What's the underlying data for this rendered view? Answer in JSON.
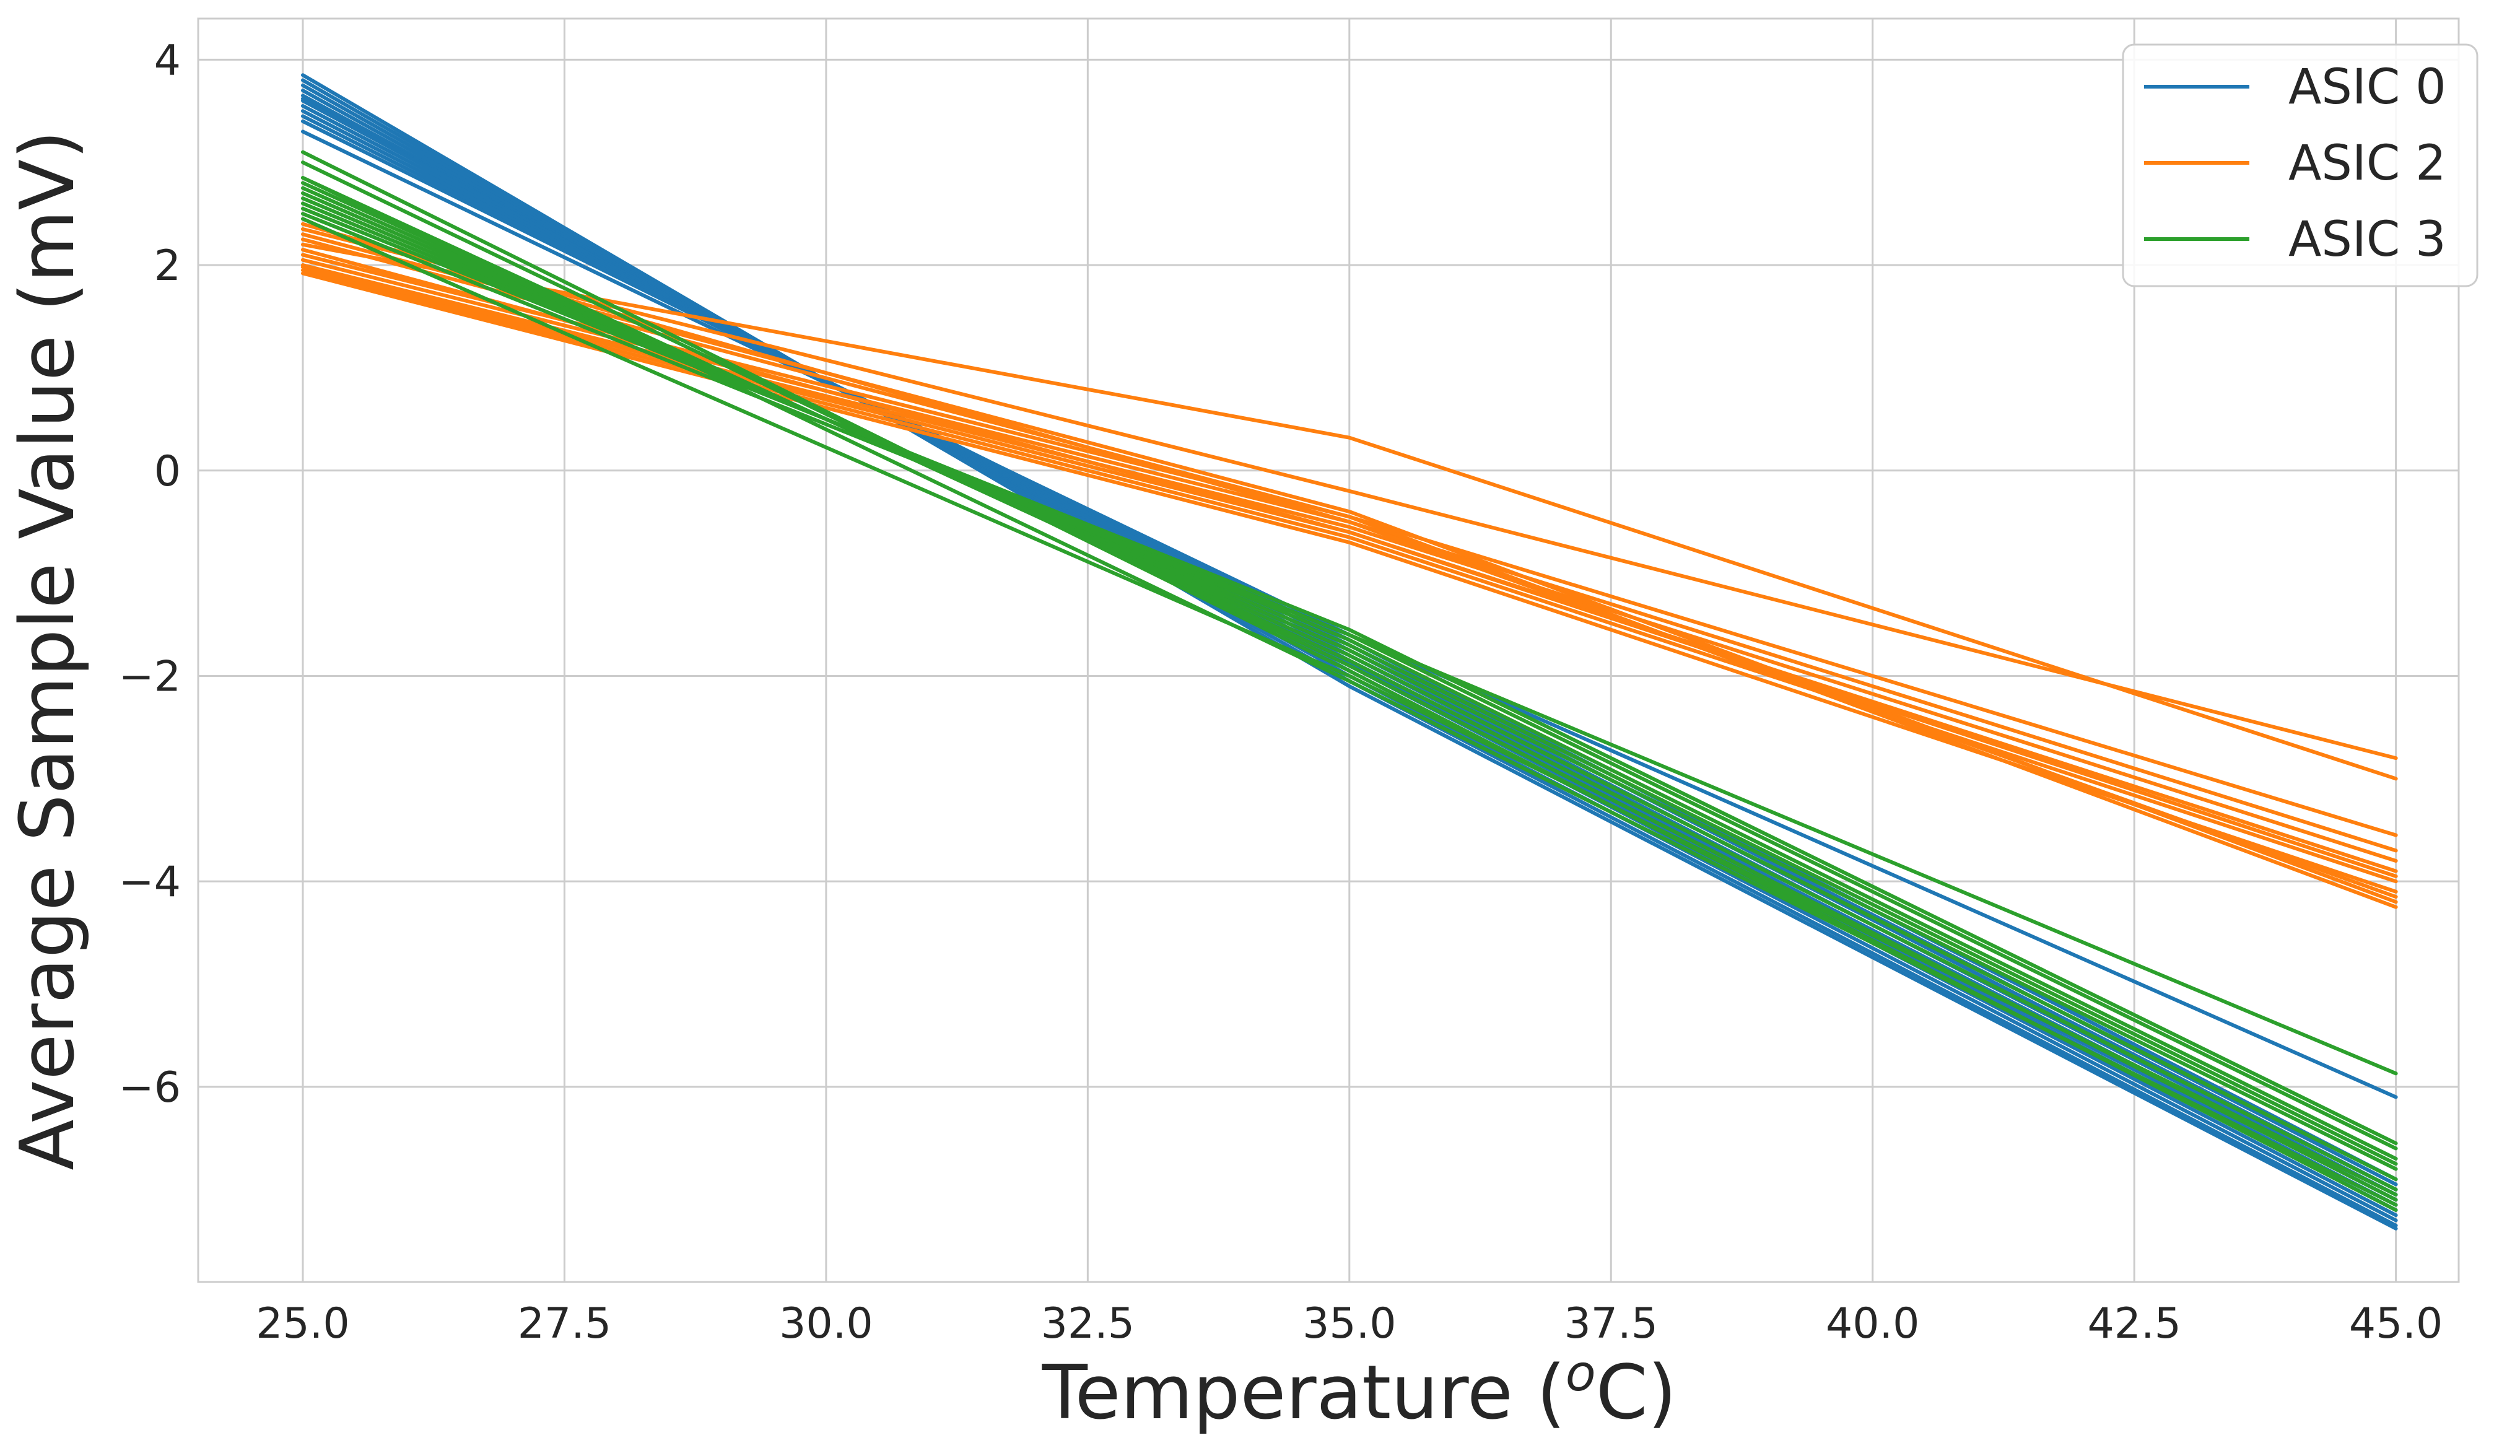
{
  "chart_data": {
    "type": "line",
    "title": "",
    "xlabel_main": "Temperature (",
    "xlabel_sup": "o",
    "xlabel_end": "C)",
    "ylabel": "Average Sample Value (mV)",
    "x": [
      25,
      35,
      45
    ],
    "xlim": [
      24,
      45.6
    ],
    "ylim": [
      -7.9,
      4.4
    ],
    "xticks": [
      25.0,
      27.5,
      30.0,
      32.5,
      35.0,
      37.5,
      40.0,
      42.5,
      45.0
    ],
    "xtick_labels": [
      "25.0",
      "27.5",
      "30.0",
      "32.5",
      "35.0",
      "37.5",
      "40.0",
      "42.5",
      "45.0"
    ],
    "yticks": [
      4,
      2,
      0,
      -2,
      -4,
      -6
    ],
    "ytick_labels": [
      "4",
      "2",
      "0",
      "−2",
      "−4",
      "−6"
    ],
    "grid": true,
    "legend_position": "top-right",
    "colors": {
      "ASIC 0": "#1f77b4",
      "ASIC 2": "#ff7f0e",
      "ASIC 3": "#2ca02c",
      "grid": "#cccccc",
      "text": "#262626"
    },
    "series": [
      {
        "name": "ASIC 0",
        "curves": [
          [
            3.85,
            -2.1,
            -7.38
          ],
          [
            3.8,
            -2.05,
            -7.35
          ],
          [
            3.75,
            -2.0,
            -7.3
          ],
          [
            3.7,
            -1.95,
            -7.25
          ],
          [
            3.65,
            -1.9,
            -7.2
          ],
          [
            3.62,
            -1.88,
            -7.15
          ],
          [
            3.6,
            -1.85,
            -7.1
          ],
          [
            3.55,
            -1.8,
            -7.05
          ],
          [
            3.5,
            -1.75,
            -7.0
          ],
          [
            3.45,
            -1.7,
            -6.95
          ],
          [
            3.4,
            -1.65,
            -6.9
          ],
          [
            3.3,
            -1.6,
            -6.1
          ]
        ]
      },
      {
        "name": "ASIC 2",
        "curves": [
          [
            2.35,
            -0.2,
            -2.8
          ],
          [
            2.2,
            0.32,
            -3.0
          ],
          [
            2.1,
            -0.45,
            -3.55
          ],
          [
            2.05,
            -0.5,
            -3.7
          ],
          [
            2.0,
            -0.55,
            -3.8
          ],
          [
            1.98,
            -0.6,
            -3.9
          ],
          [
            1.95,
            -0.65,
            -4.0
          ],
          [
            1.92,
            -0.7,
            -4.1
          ],
          [
            2.3,
            -0.4,
            -4.2
          ],
          [
            2.25,
            -0.45,
            -4.25
          ],
          [
            2.15,
            -0.6,
            -3.95
          ],
          [
            2.4,
            -0.5,
            -4.15
          ]
        ]
      },
      {
        "name": "ASIC 3",
        "curves": [
          [
            3.1,
            -1.95,
            -7.2
          ],
          [
            3.0,
            -1.9,
            -7.1
          ],
          [
            2.85,
            -1.85,
            -7.0
          ],
          [
            2.8,
            -1.8,
            -6.9
          ],
          [
            2.75,
            -1.75,
            -6.8
          ],
          [
            2.7,
            -1.7,
            -6.75
          ],
          [
            2.65,
            -1.65,
            -6.7
          ],
          [
            2.6,
            -1.6,
            -6.6
          ],
          [
            2.55,
            -1.55,
            -6.55
          ],
          [
            2.5,
            -1.6,
            -5.87
          ],
          [
            2.45,
            -2.0,
            -7.05
          ],
          [
            2.85,
            -2.05,
            -7.15
          ]
        ]
      }
    ]
  }
}
